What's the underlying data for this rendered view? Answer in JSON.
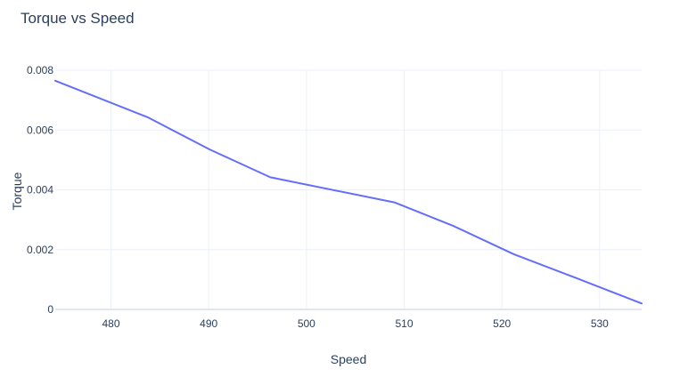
{
  "chart_data": {
    "type": "line",
    "title": "Torque vs Speed",
    "xlabel": "Speed",
    "ylabel": "Torque",
    "xlim": [
      474.3,
      534.3
    ],
    "ylim": [
      0,
      0.008
    ],
    "xticks": [
      480,
      490,
      500,
      510,
      520,
      530
    ],
    "yticks": [
      0,
      0.002,
      0.004,
      0.006,
      0.008
    ],
    "ytick_labels": [
      "0",
      "0.002",
      "0.004",
      "0.006",
      "0.008"
    ],
    "xtick_labels": [
      "480",
      "490",
      "500",
      "510",
      "520",
      "530"
    ],
    "grid": true,
    "legend": "none",
    "series": [
      {
        "color": "#636efa",
        "x": [
          474.3,
          483.8,
          490.1,
          496.3,
          509.0,
          515.0,
          521.2,
          527.6,
          534.3
        ],
        "y": [
          0.00765,
          0.00642,
          0.00535,
          0.00442,
          0.00358,
          0.0028,
          0.00185,
          0.00105,
          0.0002
        ]
      }
    ]
  }
}
